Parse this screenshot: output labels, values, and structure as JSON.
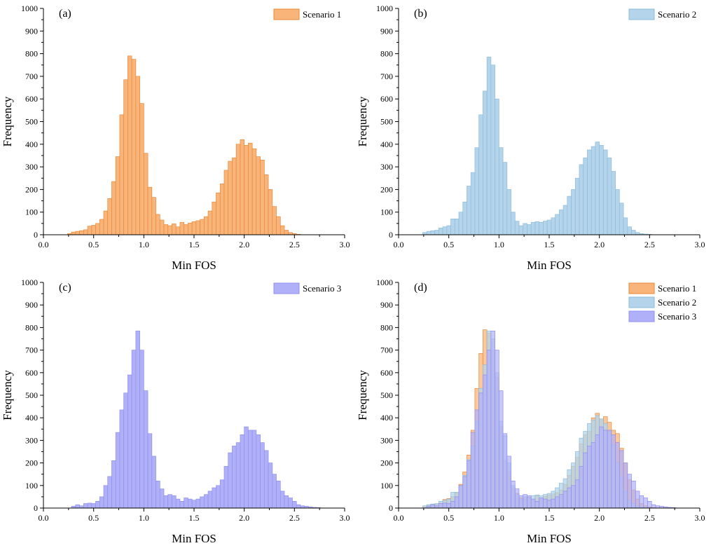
{
  "chart_data": [
    {
      "type": "bar",
      "panel_label": "(a)",
      "xlabel": "Min FOS",
      "ylabel": "Frequency",
      "xlim": [
        0.0,
        3.0
      ],
      "ylim": [
        0,
        1000
      ],
      "xticks": [
        "0.0",
        "0.5",
        "1.0",
        "1.5",
        "2.0",
        "2.5",
        "3.0"
      ],
      "yticks": [
        "0",
        "100",
        "200",
        "300",
        "400",
        "500",
        "600",
        "700",
        "800",
        "900",
        "1000"
      ],
      "bin_width": 0.04,
      "legend_position": "top-right",
      "series": [
        {
          "name": "Scenario 1",
          "fill": "#f9b47a",
          "stroke": "#e8893a",
          "x": [
            0.26,
            0.3,
            0.34,
            0.38,
            0.42,
            0.46,
            0.5,
            0.54,
            0.58,
            0.62,
            0.66,
            0.7,
            0.74,
            0.78,
            0.82,
            0.86,
            0.9,
            0.94,
            0.98,
            1.02,
            1.06,
            1.1,
            1.14,
            1.18,
            1.22,
            1.26,
            1.3,
            1.34,
            1.38,
            1.42,
            1.46,
            1.5,
            1.54,
            1.58,
            1.62,
            1.66,
            1.7,
            1.74,
            1.78,
            1.82,
            1.86,
            1.9,
            1.94,
            1.98,
            2.02,
            2.06,
            2.1,
            2.14,
            2.18,
            2.22,
            2.26,
            2.3,
            2.34,
            2.38,
            2.42,
            2.46,
            2.5,
            2.54
          ],
          "values": [
            5,
            12,
            15,
            18,
            22,
            38,
            42,
            50,
            68,
            105,
            160,
            235,
            345,
            530,
            685,
            790,
            775,
            700,
            580,
            360,
            210,
            165,
            90,
            65,
            45,
            40,
            48,
            35,
            55,
            45,
            52,
            58,
            62,
            68,
            80,
            105,
            145,
            185,
            225,
            285,
            325,
            340,
            400,
            420,
            395,
            405,
            380,
            345,
            330,
            265,
            200,
            125,
            80,
            40,
            20,
            10,
            5,
            2
          ]
        }
      ]
    },
    {
      "type": "bar",
      "panel_label": "(b)",
      "xlabel": "Min FOS",
      "ylabel": "Frequency",
      "xlim": [
        0.0,
        3.0
      ],
      "ylim": [
        0,
        1000
      ],
      "xticks": [
        "0.0",
        "0.5",
        "1.0",
        "1.5",
        "2.0",
        "2.5",
        "3.0"
      ],
      "yticks": [
        "0",
        "100",
        "200",
        "300",
        "400",
        "500",
        "600",
        "700",
        "800",
        "900",
        "1000"
      ],
      "bin_width": 0.04,
      "legend_position": "top-right",
      "series": [
        {
          "name": "Scenario 2",
          "fill": "#b3d4ea",
          "stroke": "#8fbcd9",
          "x": [
            0.26,
            0.3,
            0.34,
            0.38,
            0.42,
            0.46,
            0.5,
            0.54,
            0.58,
            0.62,
            0.66,
            0.7,
            0.74,
            0.78,
            0.82,
            0.86,
            0.9,
            0.94,
            0.98,
            1.02,
            1.06,
            1.1,
            1.14,
            1.18,
            1.22,
            1.26,
            1.3,
            1.34,
            1.38,
            1.42,
            1.46,
            1.5,
            1.54,
            1.58,
            1.62,
            1.66,
            1.7,
            1.74,
            1.78,
            1.82,
            1.86,
            1.9,
            1.94,
            1.98,
            2.02,
            2.06,
            2.1,
            2.14,
            2.18,
            2.22,
            2.26,
            2.3,
            2.34,
            2.38,
            2.42,
            2.46,
            2.5
          ],
          "values": [
            10,
            15,
            18,
            20,
            30,
            35,
            40,
            70,
            70,
            100,
            145,
            215,
            275,
            385,
            530,
            635,
            785,
            750,
            600,
            385,
            320,
            200,
            100,
            60,
            40,
            50,
            45,
            55,
            58,
            55,
            60,
            65,
            75,
            90,
            110,
            130,
            170,
            200,
            250,
            310,
            340,
            375,
            390,
            410,
            395,
            375,
            340,
            280,
            200,
            140,
            75,
            35,
            20,
            10,
            5,
            3,
            2
          ]
        }
      ]
    },
    {
      "type": "bar",
      "panel_label": "(c)",
      "xlabel": "Min FOS",
      "ylabel": "Frequency",
      "xlim": [
        0.0,
        3.0
      ],
      "ylim": [
        0,
        1000
      ],
      "xticks": [
        "0.0",
        "0.5",
        "1.0",
        "1.5",
        "2.0",
        "2.5",
        "3.0"
      ],
      "yticks": [
        "0",
        "100",
        "200",
        "300",
        "400",
        "500",
        "600",
        "700",
        "800",
        "900",
        "1000"
      ],
      "bin_width": 0.04,
      "legend_position": "top-right",
      "series": [
        {
          "name": "Scenario 3",
          "fill": "#b0b0f8",
          "stroke": "#8f8ff0",
          "x": [
            0.3,
            0.34,
            0.38,
            0.42,
            0.46,
            0.5,
            0.54,
            0.58,
            0.62,
            0.66,
            0.7,
            0.74,
            0.78,
            0.82,
            0.86,
            0.9,
            0.94,
            0.98,
            1.02,
            1.06,
            1.1,
            1.14,
            1.18,
            1.22,
            1.26,
            1.3,
            1.34,
            1.38,
            1.42,
            1.46,
            1.5,
            1.54,
            1.58,
            1.62,
            1.66,
            1.7,
            1.74,
            1.78,
            1.82,
            1.86,
            1.9,
            1.94,
            1.98,
            2.02,
            2.06,
            2.1,
            2.14,
            2.18,
            2.22,
            2.26,
            2.3,
            2.34,
            2.38,
            2.42,
            2.46,
            2.5,
            2.54,
            2.58,
            2.62,
            2.66,
            2.7,
            2.74
          ],
          "values": [
            8,
            15,
            10,
            20,
            22,
            20,
            30,
            50,
            100,
            140,
            210,
            335,
            435,
            510,
            590,
            700,
            785,
            700,
            520,
            330,
            230,
            120,
            85,
            55,
            60,
            55,
            40,
            30,
            45,
            40,
            35,
            40,
            50,
            60,
            75,
            90,
            100,
            125,
            185,
            245,
            275,
            290,
            325,
            360,
            345,
            345,
            325,
            290,
            255,
            200,
            150,
            120,
            75,
            55,
            45,
            30,
            15,
            10,
            8,
            5,
            3,
            2
          ]
        }
      ]
    },
    {
      "type": "bar",
      "panel_label": "(d)",
      "xlabel": "Min FOS",
      "ylabel": "Frequency",
      "xlim": [
        0.0,
        3.0
      ],
      "ylim": [
        0,
        1000
      ],
      "xticks": [
        "0.0",
        "0.5",
        "1.0",
        "1.5",
        "2.0",
        "2.5",
        "3.0"
      ],
      "yticks": [
        "0",
        "100",
        "200",
        "300",
        "400",
        "500",
        "600",
        "700",
        "800",
        "900",
        "1000"
      ],
      "bin_width": 0.04,
      "legend_position": "top-right",
      "overlay_of": [
        0,
        1,
        2
      ]
    }
  ]
}
